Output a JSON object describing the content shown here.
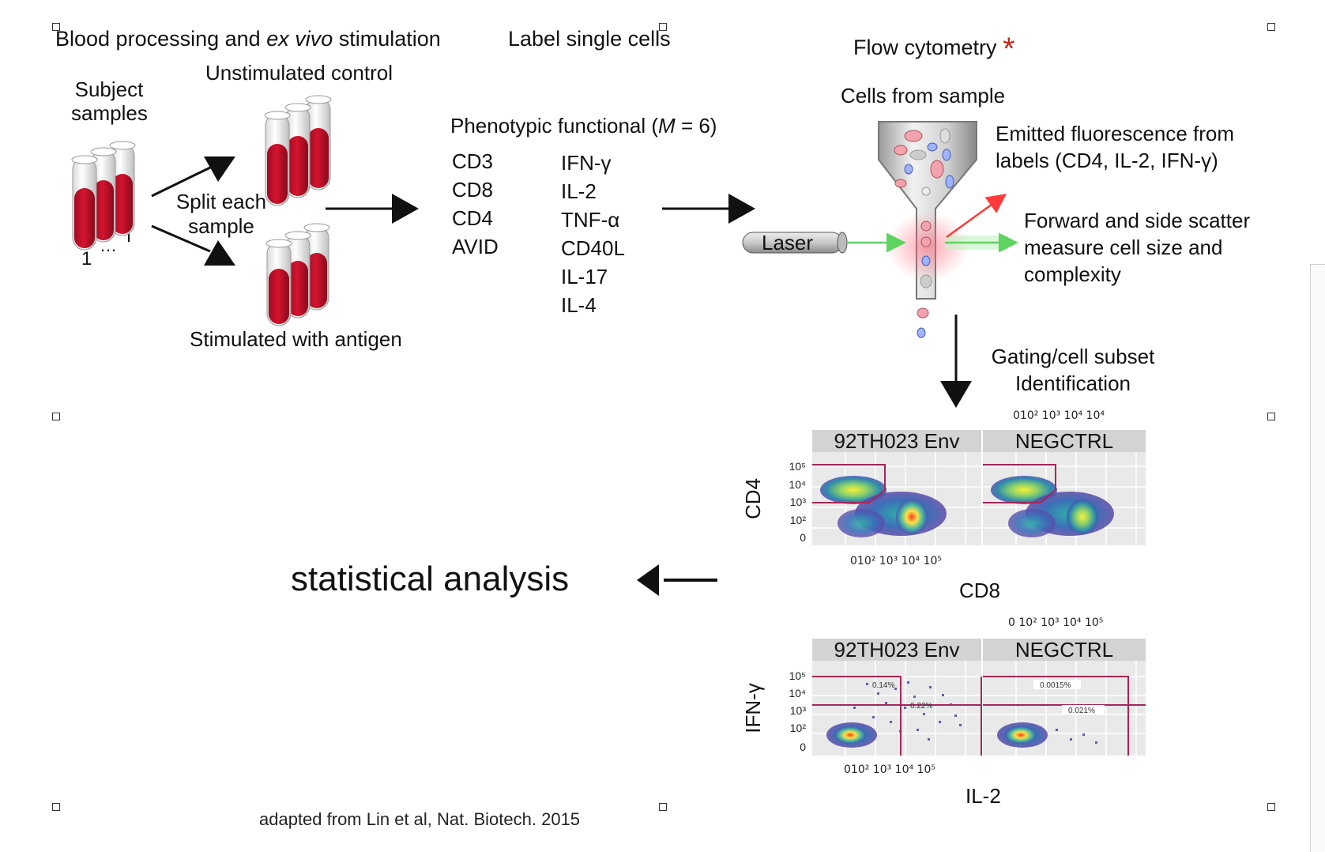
{
  "sections": {
    "blood_prefix": "Blood processing and ",
    "blood_italic": "ex vivo",
    "blood_suffix": " stimulation",
    "label_cells": "Label single cells",
    "flow": "Flow cytometry",
    "flow_star": "*"
  },
  "blood": {
    "subject_line1": "Subject",
    "subject_line2": "samples",
    "unstim": "Unstimulated control",
    "split_line1": "Split each",
    "split_line2": "sample",
    "stim": "Stimulated with antigen",
    "index_start": "1",
    "index_dots": "…",
    "index_end": "I"
  },
  "markers": {
    "heading_prefix": "Phenotypic functional (",
    "heading_var": "M",
    "heading_suffix": " = 6)",
    "phenotypic": [
      "CD3",
      "CD8",
      "CD4",
      "AVID"
    ],
    "functional": [
      "IFN-γ",
      "IL-2",
      "TNF-α",
      "CD40L",
      "IL-17",
      "IL-4"
    ]
  },
  "flow": {
    "cells_from_sample": "Cells from sample",
    "laser": "Laser",
    "emitted_line1": "Emitted fluorescence from",
    "emitted_line2": "labels (CD4, IL-2, IFN-γ)",
    "scatter_line1": "Forward and side scatter",
    "scatter_line2": "measure cell size and",
    "scatter_line3": "complexity",
    "gating_line1": "Gating/cell subset",
    "gating_line2": "Identification"
  },
  "plots": {
    "top": {
      "panels": [
        "92TH023 Env",
        "NEGCTRL"
      ],
      "ylabel": "CD4",
      "xlabel": "CD8",
      "xticks_above": "010² 10³ 10⁴ 10⁴",
      "xticks_below": "010² 10³ 10⁴ 10⁵",
      "yticks": [
        "10⁵",
        "10⁴",
        "10³",
        "10²",
        "0"
      ]
    },
    "bottom": {
      "panels": [
        "92TH023 Env",
        "NEGCTRL"
      ],
      "ylabel": "IFN-γ",
      "xlabel": "IL-2",
      "xticks_above": "0 10² 10³ 10⁴ 10⁵",
      "xticks_below": "010² 10³ 10⁴ 10⁵",
      "yticks": [
        "10⁵",
        "10⁴",
        "10³",
        "10²",
        "0"
      ],
      "gate_labels_env": [
        "0.14%",
        "0.22%"
      ],
      "gate_labels_neg": [
        "0.0015%",
        "0.021%"
      ]
    }
  },
  "analysis": "statistical analysis",
  "citation": "adapted from Lin et al, Nat. Biotech. 2015",
  "colors": {
    "arrow": "#111111",
    "star": "#c0291d",
    "blood": "#c8102e",
    "gate": "#a3265a",
    "panel_bg": "#e9e9e9",
    "strip_bg": "#d3d3d3"
  }
}
